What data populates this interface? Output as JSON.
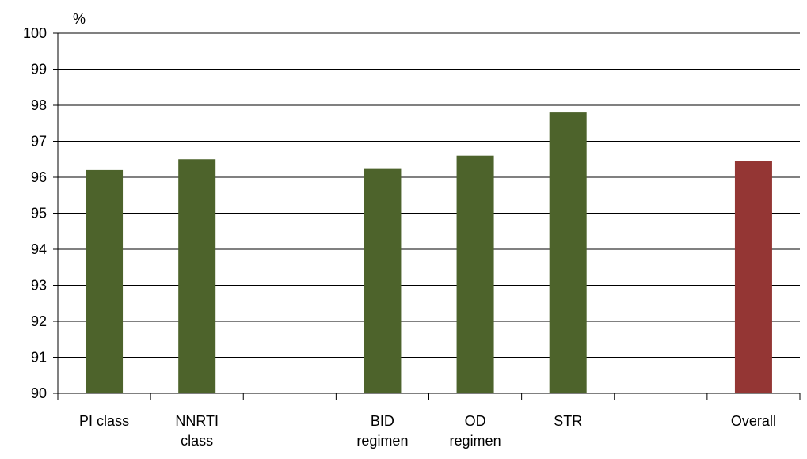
{
  "chart_data": {
    "type": "bar",
    "title": "",
    "ylabel": "%",
    "xlabel": "",
    "ylim": [
      90,
      100
    ],
    "yticks": [
      90,
      91,
      92,
      93,
      94,
      95,
      96,
      97,
      98,
      99,
      100
    ],
    "grid": true,
    "categories": [
      "PI class",
      "NNRTI class",
      "",
      "BID regimen",
      "OD regimen",
      "STR",
      "",
      "Overall"
    ],
    "category_lines": [
      [
        "PI class"
      ],
      [
        "NNRTI",
        "class"
      ],
      [],
      [
        "BID",
        "regimen"
      ],
      [
        "OD",
        "regimen"
      ],
      [
        "STR"
      ],
      [],
      [
        "Overall"
      ]
    ],
    "values": [
      96.2,
      96.5,
      null,
      96.25,
      96.6,
      97.8,
      null,
      96.45
    ],
    "colors": {
      "default": "#4d632b",
      "Overall": "#943634",
      "axis": "#000000",
      "grid": "#000000"
    }
  }
}
